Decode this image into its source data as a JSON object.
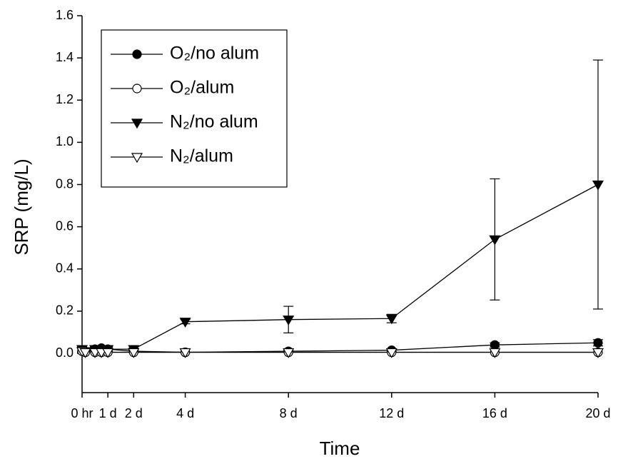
{
  "chart_data": {
    "type": "line",
    "xlabel": "Time",
    "ylabel": "SRP (mg/L)",
    "x": [
      0,
      0.125,
      0.5,
      0.75,
      1,
      2,
      4,
      8,
      12,
      16,
      20
    ],
    "xlim": [
      0,
      20
    ],
    "ylim": [
      -0.186,
      1.6
    ],
    "xticks": [
      {
        "value": 0,
        "label": "0 hr"
      },
      {
        "value": 1,
        "label": "1 d"
      },
      {
        "value": 2,
        "label": "2 d"
      },
      {
        "value": 4,
        "label": "4 d"
      },
      {
        "value": 8,
        "label": "8 d"
      },
      {
        "value": 12,
        "label": "12 d"
      },
      {
        "value": 16,
        "label": "16 d"
      },
      {
        "value": 20,
        "label": "20 d"
      }
    ],
    "yticks": [
      {
        "value": 0,
        "label": "0.0"
      },
      0.2,
      0.4,
      0.6,
      0.8,
      {
        "value": 1,
        "label": "1.0"
      },
      1.2,
      1.4,
      1.6
    ],
    "legend": "upper left",
    "series": [
      {
        "name": "O₂/no alum",
        "color": "#000000",
        "marker": "circle",
        "filled": true,
        "values": [
          0.015,
          0.01,
          0.02,
          0.025,
          0.02,
          0.01,
          0.005,
          0.01,
          0.015,
          0.04,
          0.05
        ],
        "errors": [
          0.01,
          null,
          0.008,
          0.008,
          0.008,
          null,
          null,
          0.005,
          0.006,
          0.01,
          0.015
        ]
      },
      {
        "name": "O₂/alum",
        "color": "#000000",
        "marker": "circle",
        "filled": false,
        "values": [
          0.01,
          0.005,
          0.005,
          0.005,
          0.005,
          0.005,
          0.005,
          0.005,
          0.005,
          0.005,
          0.005
        ],
        "errors": [
          null,
          null,
          null,
          null,
          null,
          null,
          null,
          null,
          null,
          null,
          null
        ]
      },
      {
        "name": "N₂/no alum",
        "color": "#000000",
        "marker": "triangle-down",
        "filled": true,
        "values": [
          0.02,
          0.01,
          0.02,
          0.02,
          0.02,
          0.02,
          0.15,
          0.16,
          0.165,
          0.54,
          0.8
        ],
        "errors": [
          0.01,
          null,
          0.01,
          0.01,
          0.01,
          0.005,
          0.01,
          0.063,
          0.02,
          0.287,
          0.59
        ]
      },
      {
        "name": "N₂/alum",
        "color": "#000000",
        "marker": "triangle-down",
        "filled": false,
        "values": [
          0.01,
          0.005,
          0.005,
          0.005,
          0.005,
          0.005,
          0.005,
          0.005,
          0.005,
          0.005,
          0.005
        ],
        "errors": [
          null,
          null,
          null,
          null,
          null,
          null,
          null,
          null,
          null,
          null,
          null
        ]
      }
    ]
  }
}
